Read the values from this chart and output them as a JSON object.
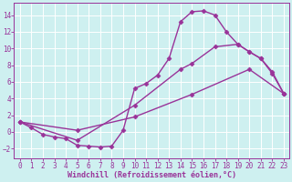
{
  "xlabel": "Windchill (Refroidissement éolien,°C)",
  "bg_color": "#cef0f0",
  "line_color": "#993399",
  "xlim": [
    -0.5,
    23.5
  ],
  "ylim": [
    -3.2,
    15.5
  ],
  "yticks": [
    -2,
    0,
    2,
    4,
    6,
    8,
    10,
    12,
    14
  ],
  "xticks": [
    0,
    1,
    2,
    3,
    4,
    5,
    6,
    7,
    8,
    9,
    10,
    11,
    12,
    13,
    14,
    15,
    16,
    17,
    18,
    19,
    20,
    21,
    22,
    23
  ],
  "line1_x": [
    0,
    1,
    2,
    3,
    4,
    5,
    6,
    7,
    8,
    9,
    10,
    11,
    12,
    13,
    14,
    15,
    16,
    17,
    18,
    19,
    20,
    21,
    22,
    23
  ],
  "line1_y": [
    1.2,
    0.5,
    -0.3,
    -0.6,
    -0.8,
    -1.6,
    -1.7,
    -1.8,
    -1.7,
    0.2,
    5.2,
    5.8,
    6.8,
    8.8,
    13.2,
    14.4,
    14.5,
    14.0,
    12.0,
    10.5,
    9.6,
    8.8,
    7.2,
    4.6
  ],
  "line2_x": [
    0,
    5,
    10,
    14,
    15,
    17,
    19,
    20,
    21,
    22,
    23
  ],
  "line2_y": [
    1.2,
    -1.0,
    3.2,
    7.5,
    8.2,
    10.2,
    10.5,
    9.6,
    8.8,
    7.0,
    4.6
  ],
  "line3_x": [
    0,
    5,
    10,
    15,
    20,
    23
  ],
  "line3_y": [
    1.2,
    0.2,
    1.8,
    4.5,
    7.5,
    4.6
  ],
  "marker": "D",
  "markersize": 2.5,
  "linewidth": 1.0,
  "tick_fontsize": 5.5,
  "xlabel_fontsize": 6.0
}
